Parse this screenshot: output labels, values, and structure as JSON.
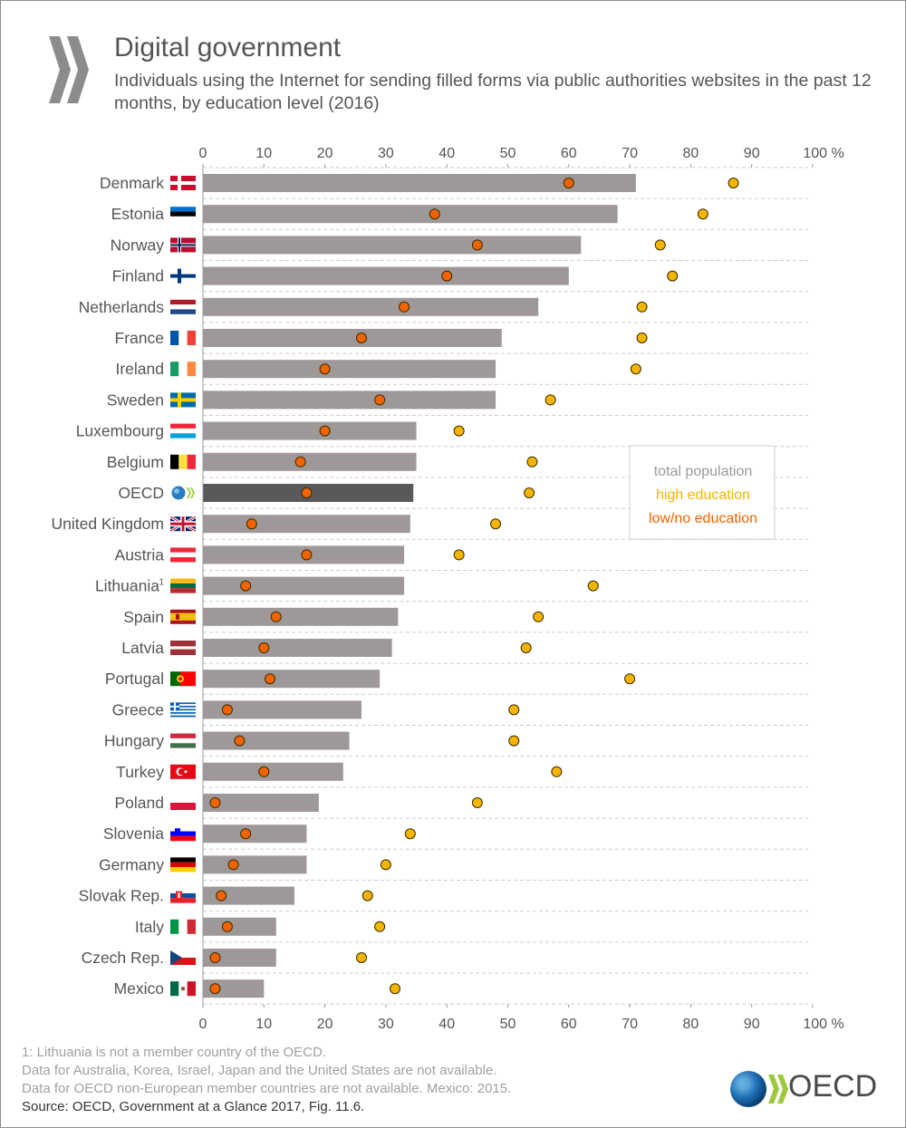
{
  "header": {
    "title": "Digital government",
    "subtitle": "Individuals using the Internet for sending filled forms via public authorities websites in the past 12 months, by education level (2016)"
  },
  "colors": {
    "bar": "#9e9898",
    "bar_highlight": "#595959",
    "high_education": "#f5b400",
    "low_education": "#f06400",
    "marker_stroke": "#3a2a00",
    "grid": "#cccccc"
  },
  "legend": {
    "total": "total population",
    "high": "high education",
    "low": "low/no education",
    "colors": {
      "total": "#999999",
      "high": "#f5b400",
      "low": "#f06400"
    },
    "position": "right-middle"
  },
  "chart_data": {
    "type": "bar",
    "orientation": "horizontal",
    "title": "Individuals using the Internet for sending filled forms via public authorities websites in the past 12 months, by education level (2016)",
    "xlabel": "%",
    "x_ticks": [
      "0",
      "10",
      "20",
      "30",
      "40",
      "50",
      "60",
      "70",
      "80",
      "90",
      "100 %"
    ],
    "xlim": [
      0,
      100
    ],
    "categories": [
      "Denmark",
      "Estonia",
      "Norway",
      "Finland",
      "Netherlands",
      "France",
      "Ireland",
      "Sweden",
      "Luxembourg",
      "Belgium",
      "OECD",
      "United Kingdom",
      "Austria",
      "Lithuania",
      "Spain",
      "Latvia",
      "Portugal",
      "Greece",
      "Hungary",
      "Turkey",
      "Poland",
      "Slovenia",
      "Germany",
      "Slovak Rep.",
      "Italy",
      "Czech Rep.",
      "Mexico"
    ],
    "superscripts": [
      "",
      "",
      "",
      "",
      "",
      "",
      "",
      "",
      "",
      "",
      "",
      "",
      "",
      "1",
      "",
      "",
      "",
      "",
      "",
      "",
      "",
      "",
      "",
      "",
      "",
      "",
      ""
    ],
    "highlight": "OECD",
    "series": [
      {
        "name": "total population",
        "type": "bar",
        "values": [
          71,
          68,
          62,
          60,
          55,
          49,
          48,
          48,
          35,
          35,
          34.5,
          34,
          33,
          33,
          32,
          31,
          29,
          26,
          24,
          23,
          19,
          17,
          17,
          15,
          12,
          12,
          10
        ]
      },
      {
        "name": "high education",
        "type": "marker",
        "values": [
          87,
          82,
          75,
          77,
          72,
          72,
          71,
          57,
          42,
          54,
          53.5,
          48,
          42,
          64,
          55,
          53,
          70,
          51,
          51,
          58,
          45,
          34,
          30,
          27,
          29,
          26,
          31.5
        ]
      },
      {
        "name": "low/no education",
        "type": "marker",
        "values": [
          60,
          38,
          45,
          40,
          33,
          26,
          20,
          29,
          20,
          16,
          17,
          8,
          17,
          7,
          12,
          10,
          11,
          4,
          6,
          10,
          2,
          7,
          5,
          3,
          4,
          2,
          2
        ]
      }
    ],
    "flags": [
      "denmark-flag-icon",
      "estonia-flag-icon",
      "norway-flag-icon",
      "finland-flag-icon",
      "netherlands-flag-icon",
      "france-flag-icon",
      "ireland-flag-icon",
      "sweden-flag-icon",
      "luxembourg-flag-icon",
      "belgium-flag-icon",
      "oecd-globe-icon",
      "united-kingdom-flag-icon",
      "austria-flag-icon",
      "lithuania-flag-icon",
      "spain-flag-icon",
      "latvia-flag-icon",
      "portugal-flag-icon",
      "greece-flag-icon",
      "hungary-flag-icon",
      "turkey-flag-icon",
      "poland-flag-icon",
      "slovenia-flag-icon",
      "germany-flag-icon",
      "slovak-rep-flag-icon",
      "italy-flag-icon",
      "czech-rep-flag-icon",
      "mexico-flag-icon"
    ]
  },
  "footer": {
    "note1": "1: Lithuania is not a member country of the OECD.",
    "note2": "Data for Australia, Korea, Israel, Japan and the United States are not available.",
    "note3": "Data for OECD non-European member countries are not available. Mexico: 2015.",
    "source": "Source: OECD, Government at a Glance 2017, Fig. 11.6."
  },
  "logo": {
    "text": "OECD",
    "icon": "oecd-logo-icon"
  }
}
